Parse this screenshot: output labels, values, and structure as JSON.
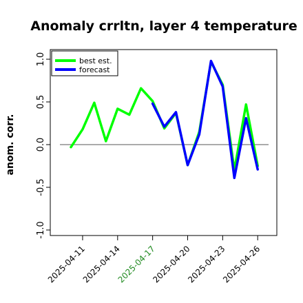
{
  "chart_data": {
    "type": "line",
    "title": "Anomaly crrltn, layer 4 temperature",
    "ylabel": "anom. corr.",
    "xlabel": "",
    "ylim": [
      -1.0,
      1.0
    ],
    "yticks": [
      "-1.0",
      "-0.5",
      "0.0",
      "0.5",
      "1.0"
    ],
    "ytick_values": [
      -1.0,
      -0.5,
      0.0,
      0.5,
      1.0
    ],
    "x": [
      "2025-04-10",
      "2025-04-11",
      "2025-04-12",
      "2025-04-13",
      "2025-04-14",
      "2025-04-15",
      "2025-04-16",
      "2025-04-17",
      "2025-04-18",
      "2025-04-19",
      "2025-04-20",
      "2025-04-21",
      "2025-04-22",
      "2025-04-23",
      "2025-04-24",
      "2025-04-25",
      "2025-04-26"
    ],
    "xticks": [
      "2025-04-11",
      "2025-04-14",
      "2025-04-17",
      "2025-04-20",
      "2025-04-23",
      "2025-04-26"
    ],
    "xtick_colors": [
      "#000000",
      "#000000",
      "#228b22",
      "#000000",
      "#000000",
      "#000000"
    ],
    "reference_line": 0.0,
    "grid": false,
    "legend_position": "top-left",
    "series": [
      {
        "name": "best est.",
        "color": "#00ff00",
        "values": [
          -0.03,
          0.18,
          0.49,
          0.04,
          0.42,
          0.35,
          0.66,
          0.51,
          0.19,
          0.37,
          -0.24,
          0.15,
          0.97,
          0.7,
          -0.3,
          0.47,
          -0.25
        ]
      },
      {
        "name": "forecast",
        "color": "#0000ff",
        "values": [
          null,
          null,
          null,
          null,
          null,
          null,
          null,
          0.48,
          0.21,
          0.38,
          -0.24,
          0.12,
          0.98,
          0.68,
          -0.39,
          0.31,
          -0.29
        ]
      }
    ]
  }
}
